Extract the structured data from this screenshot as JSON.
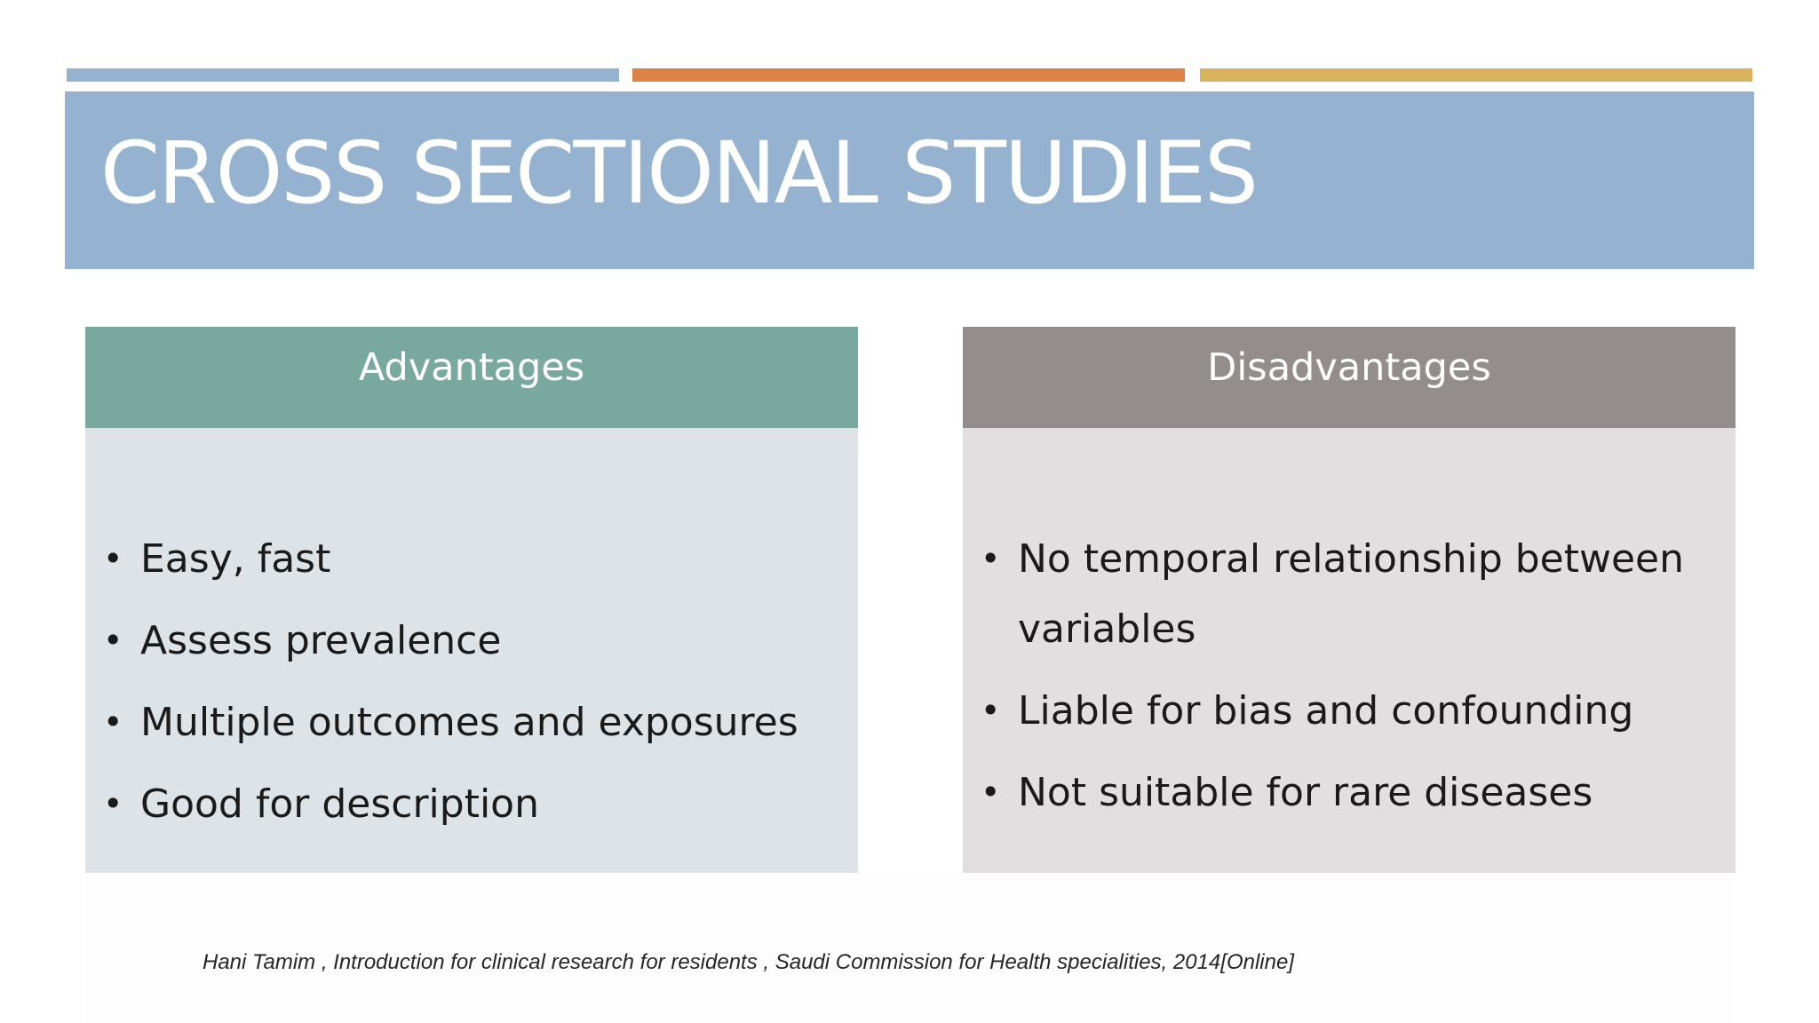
{
  "title": "CROSS SECTIONAL STUDIES",
  "colors": {
    "accent_blue": "#95b3d1",
    "accent_orange": "#dd8346",
    "accent_gold": "#d8b25e",
    "title_band": "#95b3d1",
    "advantages_header": "#79a89f",
    "disadvantages_header": "#938d8e"
  },
  "advantages": {
    "heading": "Advantages",
    "items": [
      "Easy, fast",
      "Assess prevalence",
      "Multiple outcomes and exposures",
      "Good for description"
    ]
  },
  "disadvantages": {
    "heading": "Disadvantages",
    "items": [
      "No temporal relationship between variables",
      "Liable for bias and confounding",
      "Not suitable for rare diseases"
    ]
  },
  "citation": "Hani Tamim , Introduction for clinical research for residents , Saudi Commission for Health specialities, 2014[Online]"
}
